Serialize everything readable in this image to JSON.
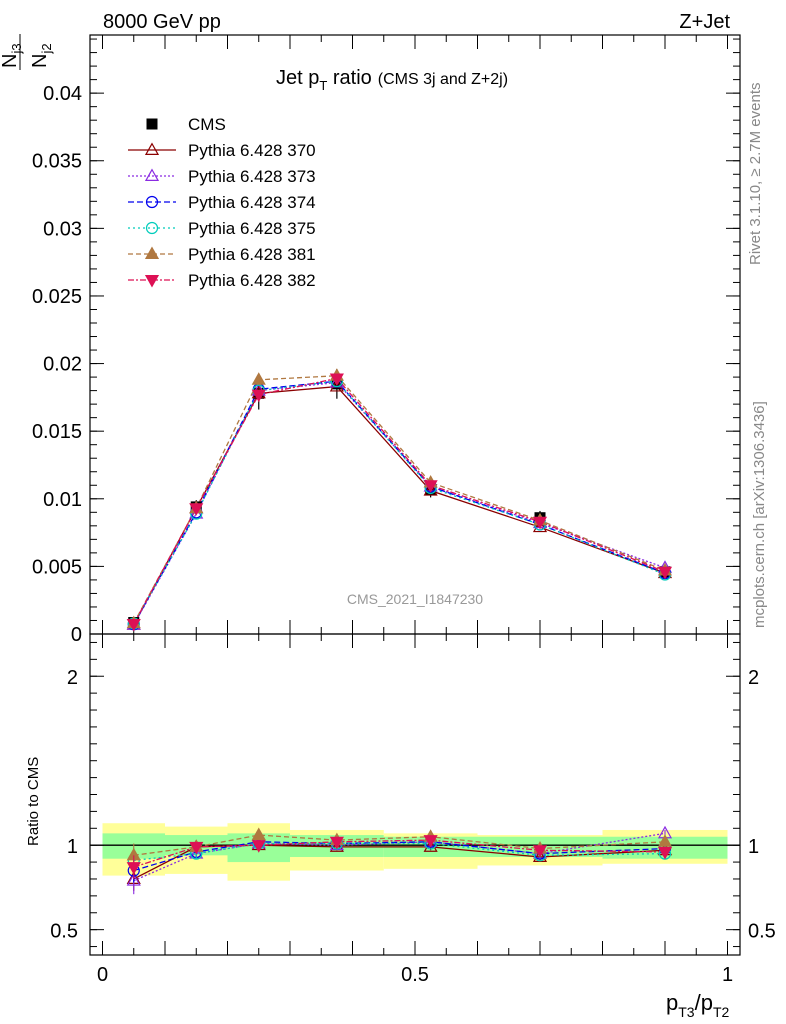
{
  "header": {
    "energy_label": "8000 GeV pp",
    "process_label": "Z+Jet"
  },
  "side_labels": {
    "rivet": "Rivet 3.1.10, ≥ 2.7M events",
    "mcplots": "mcplots.cern.ch [arXiv:1306.3436]"
  },
  "watermark": "CMS_2021_I1847230",
  "title": {
    "main": "Jet p",
    "sub": "T",
    "tail": " ratio",
    "small": "(CMS 3j and Z+2j)"
  },
  "y_label_top": {
    "num": "N",
    "num_sub": "j3",
    "den": "N",
    "den_sub": "j2"
  },
  "y_label_bottom": "Ratio to CMS",
  "x_label": {
    "p1": "p",
    "s1": "T3",
    "slash": "/p",
    "s2": "T2"
  },
  "chart_data": [
    {
      "type": "line",
      "panel": "main",
      "ylim": [
        0,
        0.0443
      ],
      "xlim": [
        -0.02,
        1.02
      ],
      "y_ticks": [
        {
          "v": 0,
          "label": "0"
        },
        {
          "v": 0.005,
          "label": "0.005"
        },
        {
          "v": 0.01,
          "label": "0.01"
        },
        {
          "v": 0.015,
          "label": "0.015"
        },
        {
          "v": 0.02,
          "label": "0.02"
        },
        {
          "v": 0.025,
          "label": "0.025"
        },
        {
          "v": 0.03,
          "label": "0.03"
        },
        {
          "v": 0.035,
          "label": "0.035"
        },
        {
          "v": 0.04,
          "label": "0.04"
        }
      ],
      "x": [
        0.05,
        0.15,
        0.25,
        0.375,
        0.525,
        0.7,
        0.9
      ],
      "cms": {
        "name": "CMS",
        "values": [
          0.00085,
          0.0094,
          0.0178,
          0.0185,
          0.0107,
          0.0086,
          0.0046
        ],
        "errors": [
          0.0001,
          0.0005,
          0.0012,
          0.0011,
          0.0006,
          0.0005,
          0.0003
        ]
      },
      "series": [
        {
          "name": "Pythia 6.428 370",
          "color": "#8b0000",
          "dash": "",
          "marker": "triangle-open",
          "values": [
            0.00068,
            0.0093,
            0.0178,
            0.0183,
            0.0106,
            0.0079,
            0.0045
          ]
        },
        {
          "name": "Pythia 6.428 373",
          "color": "#8a2be2",
          "dash": "2,2",
          "marker": "triangle-open",
          "values": [
            0.00068,
            0.0089,
            0.018,
            0.0186,
            0.0109,
            0.0082,
            0.0049
          ]
        },
        {
          "name": "Pythia 6.428 374",
          "color": "#0000ee",
          "dash": "6,3",
          "marker": "circle-open",
          "values": [
            0.00072,
            0.009,
            0.0181,
            0.0187,
            0.0109,
            0.0081,
            0.0045
          ]
        },
        {
          "name": "Pythia 6.428 375",
          "color": "#00ccbb",
          "dash": "2,3",
          "marker": "circle-open",
          "values": [
            0.00078,
            0.0089,
            0.018,
            0.0187,
            0.0108,
            0.0081,
            0.0044
          ]
        },
        {
          "name": "Pythia 6.428 381",
          "color": "#b07840",
          "dash": "5,3",
          "marker": "triangle-filled",
          "values": [
            0.0008,
            0.0093,
            0.0188,
            0.0191,
            0.0112,
            0.0084,
            0.0047
          ]
        },
        {
          "name": "Pythia 6.428 382",
          "color": "#dd1155",
          "dash": "6,2,2,2",
          "marker": "triangle-down-filled",
          "values": [
            0.00074,
            0.0093,
            0.0177,
            0.0189,
            0.011,
            0.0083,
            0.0046
          ]
        }
      ]
    },
    {
      "type": "line",
      "panel": "ratio",
      "ylim": [
        0.35,
        2.25
      ],
      "xlim": [
        -0.02,
        1.02
      ],
      "y_ticks": [
        {
          "v": 0.5,
          "label": "0.5"
        },
        {
          "v": 1,
          "label": "1"
        },
        {
          "v": 2,
          "label": "2"
        }
      ],
      "x_ticks": [
        {
          "v": 0,
          "label": "0"
        },
        {
          "v": 0.5,
          "label": "0.5"
        },
        {
          "v": 1,
          "label": "1"
        }
      ],
      "bins": [
        {
          "lo": 0.0,
          "hi": 0.1,
          "stat": [
            0.92,
            1.07
          ],
          "total": [
            0.82,
            1.13
          ]
        },
        {
          "lo": 0.1,
          "hi": 0.2,
          "stat": [
            0.94,
            1.06
          ],
          "total": [
            0.83,
            1.11
          ]
        },
        {
          "lo": 0.2,
          "hi": 0.3,
          "stat": [
            0.9,
            1.07
          ],
          "total": [
            0.79,
            1.13
          ]
        },
        {
          "lo": 0.3,
          "hi": 0.45,
          "stat": [
            0.93,
            1.06
          ],
          "total": [
            0.85,
            1.09
          ]
        },
        {
          "lo": 0.45,
          "hi": 0.6,
          "stat": [
            0.93,
            1.05
          ],
          "total": [
            0.86,
            1.07
          ]
        },
        {
          "lo": 0.6,
          "hi": 0.8,
          "stat": [
            0.93,
            1.05
          ],
          "total": [
            0.88,
            1.06
          ]
        },
        {
          "lo": 0.8,
          "hi": 1.0,
          "stat": [
            0.92,
            1.05
          ],
          "total": [
            0.89,
            1.09
          ]
        }
      ],
      "x": [
        0.05,
        0.15,
        0.25,
        0.375,
        0.525,
        0.7,
        0.9
      ],
      "series": [
        {
          "name": "Pythia 6.428 370",
          "values": [
            0.8,
            0.99,
            1.0,
            0.99,
            0.99,
            0.93,
            0.97
          ],
          "errors": [
            0.07,
            0.03,
            0.02,
            0.02,
            0.02,
            0.02,
            0.02
          ]
        },
        {
          "name": "Pythia 6.428 373",
          "values": [
            0.79,
            0.95,
            1.01,
            1.0,
            1.02,
            0.95,
            1.07
          ],
          "errors": [
            0.08,
            0.03,
            0.02,
            0.02,
            0.02,
            0.02,
            0.02
          ]
        },
        {
          "name": "Pythia 6.428 374",
          "values": [
            0.85,
            0.96,
            1.02,
            1.01,
            1.02,
            0.95,
            0.98
          ],
          "errors": [
            0.07,
            0.03,
            0.02,
            0.02,
            0.02,
            0.02,
            0.02
          ]
        },
        {
          "name": "Pythia 6.428 375",
          "values": [
            0.91,
            0.95,
            1.01,
            1.01,
            1.01,
            0.94,
            0.95
          ],
          "errors": [
            0.07,
            0.03,
            0.02,
            0.02,
            0.02,
            0.02,
            0.02
          ]
        },
        {
          "name": "Pythia 6.428 381",
          "values": [
            0.94,
            0.99,
            1.06,
            1.03,
            1.05,
            0.98,
            1.02
          ],
          "errors": [
            0.07,
            0.03,
            0.02,
            0.02,
            0.02,
            0.02,
            0.02
          ]
        },
        {
          "name": "Pythia 6.428 382",
          "values": [
            0.87,
            0.99,
            1.0,
            1.02,
            1.03,
            0.97,
            0.96
          ],
          "errors": [
            0.07,
            0.03,
            0.02,
            0.02,
            0.02,
            0.02,
            0.02
          ]
        }
      ]
    }
  ]
}
